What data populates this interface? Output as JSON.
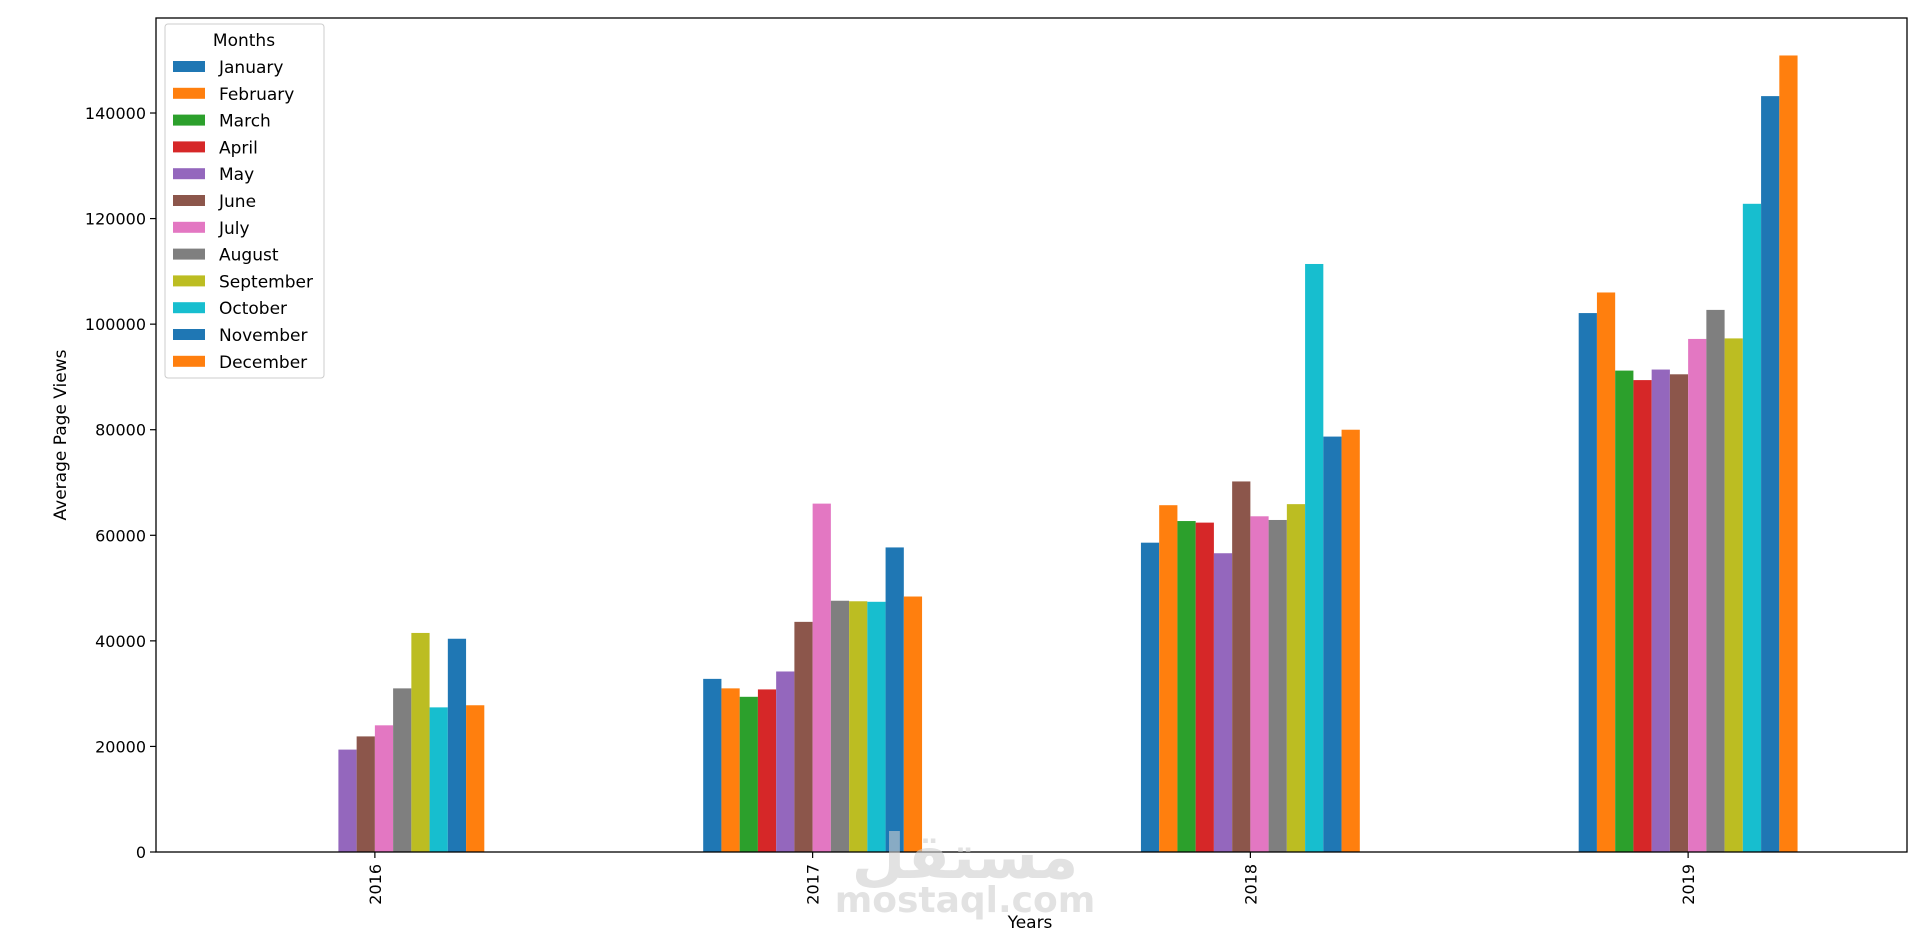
{
  "chart_data": {
    "type": "bar",
    "xlabel": "Years",
    "ylabel": "Average Page Views",
    "categories": [
      "2016",
      "2017",
      "2018",
      "2019"
    ],
    "ylim": [
      0,
      158000
    ],
    "yticks": [
      0,
      20000,
      40000,
      60000,
      80000,
      100000,
      120000,
      140000
    ],
    "legend": {
      "title": "Months",
      "placement": "top-left"
    },
    "grid": false,
    "series": [
      {
        "name": "January",
        "color": "#1f77b4",
        "values": [
          null,
          32800,
          58600,
          102100
        ]
      },
      {
        "name": "February",
        "color": "#ff7f0e",
        "values": [
          null,
          31000,
          65700,
          106000
        ]
      },
      {
        "name": "March",
        "color": "#2ca02c",
        "values": [
          null,
          29400,
          62700,
          91200
        ]
      },
      {
        "name": "April",
        "color": "#d62728",
        "values": [
          null,
          30800,
          62400,
          89400
        ]
      },
      {
        "name": "May",
        "color": "#9467bd",
        "values": [
          19400,
          34200,
          56600,
          91400
        ]
      },
      {
        "name": "June",
        "color": "#8c564b",
        "values": [
          21900,
          43600,
          70200,
          90500
        ]
      },
      {
        "name": "July",
        "color": "#e377c2",
        "values": [
          24000,
          66000,
          63600,
          97200
        ]
      },
      {
        "name": "August",
        "color": "#7f7f7f",
        "values": [
          31000,
          47600,
          62900,
          102700
        ]
      },
      {
        "name": "September",
        "color": "#bcbd22",
        "values": [
          41500,
          47500,
          65900,
          97300
        ]
      },
      {
        "name": "October",
        "color": "#17becf",
        "values": [
          27400,
          47400,
          111400,
          122800
        ]
      },
      {
        "name": "November",
        "color": "#1f77b4",
        "values": [
          40400,
          57700,
          78700,
          143200
        ]
      },
      {
        "name": "December",
        "color": "#ff7f0e",
        "values": [
          27800,
          48400,
          80000,
          150900
        ]
      }
    ]
  },
  "watermark": {
    "arabic": "مستقل",
    "latin": "mostaql.com"
  }
}
